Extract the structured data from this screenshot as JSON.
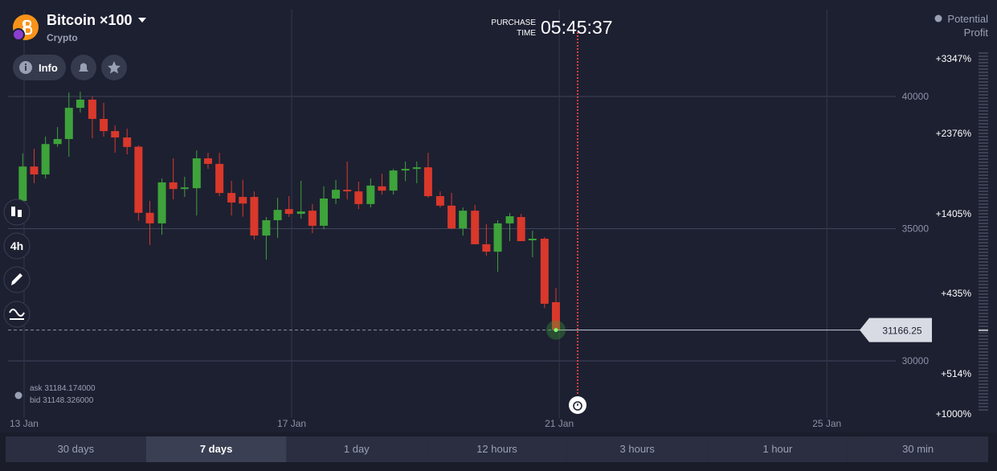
{
  "header": {
    "title": "Bitcoin ×100",
    "subtitle": "Crypto",
    "info_button": "Info",
    "purchase_label_1": "PURCHASE",
    "purchase_label_2": "TIME",
    "purchase_time": "05:45:37",
    "profit_label_1": "Potential",
    "profit_label_2": "Profit"
  },
  "toolbar": {
    "timeframe": "4h"
  },
  "quote": {
    "ask": "ask 31184.174000",
    "bid": "bid 31148.326000"
  },
  "profit_scale": [
    "+3347%",
    "+2376%",
    "+1405%",
    "+435%",
    "+514%",
    "+1000%"
  ],
  "tabs": {
    "items": [
      "30 days",
      "7 days",
      "1 day",
      "12 hours",
      "3 hours",
      "1 hour",
      "30 min"
    ],
    "selected": 1
  },
  "chart_data": {
    "type": "candlestick",
    "x": [
      12.98,
      13.15,
      13.32,
      13.5,
      13.67,
      13.84,
      14.02,
      14.19,
      14.36,
      14.54,
      14.71,
      14.88,
      15.06,
      15.23,
      15.4,
      15.58,
      15.75,
      15.92,
      16.1,
      16.27,
      16.44,
      16.62,
      16.79,
      16.96,
      17.14,
      17.31,
      17.48,
      17.66,
      17.83,
      18.0,
      18.18,
      18.35,
      18.52,
      18.7,
      18.87,
      19.04,
      19.22,
      19.39,
      19.56,
      19.74,
      19.91,
      20.08,
      20.26,
      20.43,
      20.6,
      20.78,
      20.95
    ],
    "open": [
      36050,
      37350,
      37050,
      38200,
      38390,
      39570,
      39880,
      39150,
      38690,
      38450,
      38100,
      35600,
      35200,
      36750,
      36500,
      36530,
      37660,
      37450,
      36350,
      36200,
      36200,
      34740,
      35320,
      35740,
      35560,
      35680,
      35110,
      36140,
      36470,
      36410,
      35930,
      36600,
      36440,
      37200,
      37260,
      37320,
      36230,
      35870,
      35010,
      35680,
      34410,
      34130,
      35200,
      35440,
      34560,
      34620,
      32220
    ],
    "high": [
      37850,
      38020,
      38480,
      38840,
      40150,
      40180,
      40000,
      39760,
      38910,
      38780,
      38150,
      36050,
      36900,
      37660,
      36960,
      37960,
      37870,
      37870,
      36810,
      36850,
      36410,
      35440,
      36170,
      36230,
      36810,
      35930,
      36600,
      36840,
      37540,
      36780,
      36900,
      37080,
      37260,
      37540,
      37540,
      37870,
      36410,
      36350,
      35800,
      35900,
      35170,
      35320,
      35590,
      35560,
      34920,
      34680,
      32760
    ],
    "low": [
      35900,
      36720,
      36900,
      38090,
      37720,
      39390,
      38420,
      38480,
      37870,
      37810,
      35300,
      34380,
      34770,
      36110,
      36200,
      35500,
      37260,
      36230,
      35500,
      35450,
      34590,
      33830,
      34650,
      35440,
      35380,
      34830,
      34980,
      35930,
      36110,
      35740,
      35800,
      36290,
      36290,
      36800,
      36720,
      36170,
      35800,
      34980,
      34740,
      34410,
      33980,
      33370,
      34530,
      34530,
      33920,
      32000,
      31150
    ],
    "close": [
      37350,
      37050,
      38200,
      38390,
      39570,
      39880,
      39150,
      38690,
      38450,
      38090,
      35600,
      35200,
      36750,
      36500,
      36560,
      37660,
      37450,
      36350,
      35990,
      35950,
      34740,
      35320,
      35710,
      35560,
      35650,
      35110,
      36140,
      36470,
      36410,
      35930,
      36630,
      36440,
      37200,
      37260,
      37320,
      36230,
      35870,
      35010,
      35680,
      34410,
      34130,
      35200,
      35470,
      34530,
      34620,
      32160,
      31166.25
    ],
    "up_color": "#3ea33a",
    "down_color": "#d9382b",
    "current_price": 31166.25,
    "xlim": [
      12.64,
      26.03
    ],
    "xticks": [
      {
        "value": 13,
        "label": "13 Jan"
      },
      {
        "value": 17,
        "label": "17 Jan"
      },
      {
        "value": 21,
        "label": "21 Jan"
      },
      {
        "value": 25,
        "label": "25 Jan"
      }
    ],
    "ylim": [
      28000,
      42000
    ],
    "yticks": [
      30000,
      35000,
      40000
    ],
    "grid": true
  }
}
